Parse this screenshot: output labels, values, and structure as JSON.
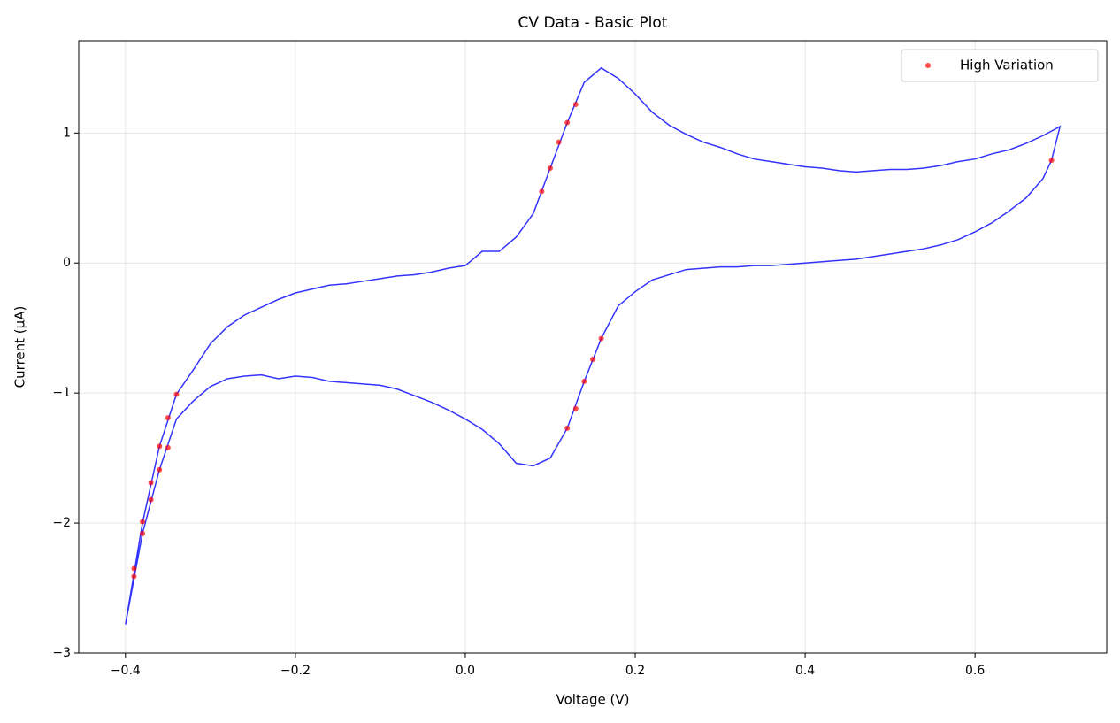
{
  "chart_data": {
    "type": "line",
    "title": "CV Data - Basic Plot",
    "xlabel": "Voltage (V)",
    "ylabel": "Current (μA)",
    "xlim": [
      -0.455,
      0.755
    ],
    "ylim": [
      -3.0,
      1.71
    ],
    "xticks": [
      {
        "value": -0.4,
        "label": "−0.4"
      },
      {
        "value": -0.2,
        "label": "−0.2"
      },
      {
        "value": 0,
        "label": "0.0"
      },
      0.2,
      0.4,
      0.6
    ],
    "yticks": [
      {
        "value": -3,
        "label": "−3"
      },
      {
        "value": -2,
        "label": "−2"
      },
      {
        "value": -1,
        "label": "−1"
      },
      0,
      1
    ],
    "grid": true,
    "legend": "upper right",
    "series": [
      {
        "type": "line",
        "color": "#0000ff",
        "x": [
          -0.4,
          -0.38,
          -0.36,
          -0.34,
          -0.32,
          -0.3,
          -0.28,
          -0.26,
          -0.24,
          -0.22,
          -0.2,
          -0.18,
          -0.16,
          -0.14,
          -0.12,
          -0.1,
          -0.08,
          -0.06,
          -0.04,
          -0.02,
          0,
          0.02,
          0.04,
          0.06,
          0.08,
          0.1,
          0.12,
          0.14,
          0.16,
          0.18,
          0.2,
          0.22,
          0.24,
          0.26,
          0.28,
          0.3,
          0.32,
          0.34,
          0.36,
          0.38,
          0.4,
          0.42,
          0.44,
          0.46,
          0.48,
          0.5,
          0.52,
          0.54,
          0.56,
          0.58,
          0.6,
          0.62,
          0.64,
          0.66,
          0.68,
          0.7,
          0.69,
          0.68,
          0.66,
          0.64,
          0.62,
          0.6,
          0.58,
          0.56,
          0.54,
          0.52,
          0.5,
          0.48,
          0.46,
          0.44,
          0.42,
          0.4,
          0.38,
          0.36,
          0.34,
          0.32,
          0.3,
          0.28,
          0.26,
          0.24,
          0.22,
          0.2,
          0.18,
          0.16,
          0.14,
          0.12,
          0.1,
          0.08,
          0.06,
          0.04,
          0.02,
          0,
          -0.02,
          -0.04,
          -0.06,
          -0.08,
          -0.1,
          -0.12,
          -0.14,
          -0.16,
          -0.18,
          -0.2,
          -0.22,
          -0.24,
          -0.26,
          -0.28,
          -0.3,
          -0.32,
          -0.34,
          -0.36,
          -0.38,
          -0.4
        ],
        "values": [
          -2.78,
          -2.0,
          -1.41,
          -1.01,
          -0.82,
          -0.62,
          -0.49,
          -0.4,
          -0.34,
          -0.28,
          -0.23,
          -0.2,
          -0.17,
          -0.16,
          -0.14,
          -0.12,
          -0.1,
          -0.09,
          -0.07,
          -0.04,
          -0.02,
          0.09,
          0.09,
          0.2,
          0.38,
          0.73,
          1.08,
          1.39,
          1.5,
          1.42,
          1.3,
          1.16,
          1.06,
          0.99,
          0.93,
          0.89,
          0.84,
          0.8,
          0.78,
          0.76,
          0.74,
          0.73,
          0.71,
          0.7,
          0.71,
          0.72,
          0.72,
          0.73,
          0.75,
          0.78,
          0.8,
          0.84,
          0.87,
          0.92,
          0.98,
          1.05,
          0.79,
          0.65,
          0.5,
          0.4,
          0.31,
          0.24,
          0.18,
          0.14,
          0.11,
          0.09,
          0.07,
          0.05,
          0.03,
          0.02,
          0.01,
          0.0,
          -0.01,
          -0.02,
          -0.02,
          -0.03,
          -0.03,
          -0.04,
          -0.05,
          -0.09,
          -0.13,
          -0.22,
          -0.33,
          -0.58,
          -0.91,
          -1.27,
          -1.5,
          -1.56,
          -1.54,
          -1.39,
          -1.28,
          -1.2,
          -1.13,
          -1.07,
          -1.02,
          -0.97,
          -0.94,
          -0.93,
          -0.92,
          -0.91,
          -0.88,
          -0.87,
          -0.89,
          -0.86,
          -0.87,
          -0.89,
          -0.95,
          -1.06,
          -1.2,
          -1.59,
          -2.08,
          -2.78
        ]
      },
      {
        "type": "scatter",
        "name": "High Variation",
        "color": "#ff0000",
        "x": [
          -0.39,
          -0.39,
          -0.38,
          -0.38,
          -0.37,
          -0.37,
          -0.36,
          -0.36,
          -0.35,
          -0.35,
          -0.34,
          0.09,
          0.1,
          0.11,
          0.12,
          0.13,
          0.69,
          0.16,
          0.15,
          0.14,
          0.13,
          0.12
        ],
        "values": [
          -2.35,
          -2.41,
          -1.99,
          -2.08,
          -1.69,
          -1.82,
          -1.41,
          -1.59,
          -1.19,
          -1.42,
          -1.01,
          0.55,
          0.73,
          0.93,
          1.08,
          1.22,
          0.79,
          -0.58,
          -0.74,
          -0.91,
          -1.12,
          -1.27
        ]
      }
    ]
  }
}
